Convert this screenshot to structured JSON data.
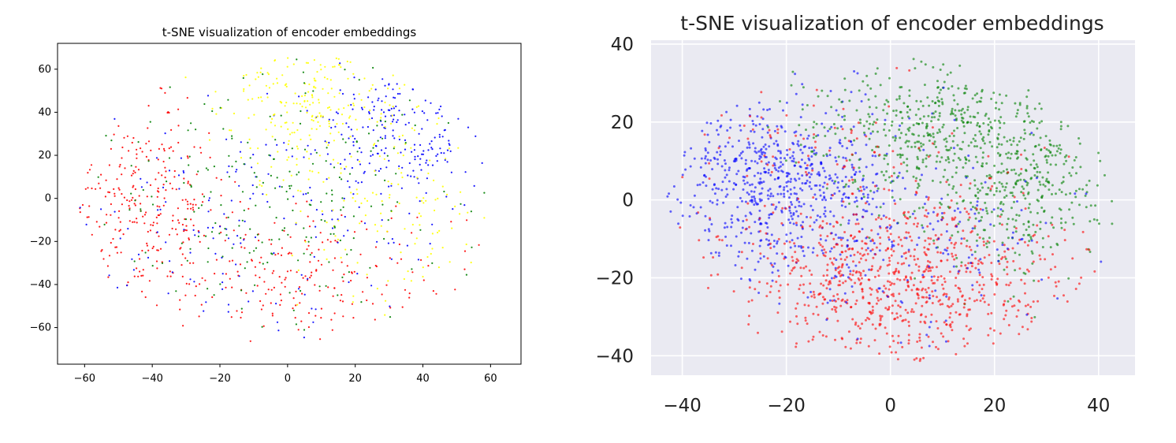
{
  "chart_data": [
    {
      "type": "scatter",
      "title": "t-SNE visualization of encoder embeddings",
      "xlabel": "",
      "ylabel": "",
      "xlim": [
        -68,
        69
      ],
      "ylim": [
        -77,
        72
      ],
      "xticks": [
        -60,
        -40,
        -20,
        0,
        20,
        40,
        60
      ],
      "yticks": [
        60,
        40,
        20,
        0,
        -20,
        -40,
        -60
      ],
      "xtick_labels": [
        "−60",
        "−40",
        "−20",
        "0",
        "20",
        "40",
        "60"
      ],
      "ytick_labels": [
        "60",
        "40",
        "20",
        "0",
        "−20",
        "−40",
        "−60"
      ],
      "grid": false,
      "style": "white",
      "series": [
        {
          "color": "#ff0000",
          "center": [
            -42,
            -5
          ],
          "spread": [
            12,
            22
          ],
          "n": 260
        },
        {
          "color": "#ff0000",
          "center": [
            5,
            -35
          ],
          "spread": [
            22,
            15
          ],
          "n": 200
        },
        {
          "color": "#0000ff",
          "center": [
            35,
            32
          ],
          "spread": [
            14,
            18
          ],
          "n": 200
        },
        {
          "color": "#0000ff",
          "center": [
            -10,
            -10
          ],
          "spread": [
            25,
            30
          ],
          "n": 160
        },
        {
          "color": "#ffff00",
          "center": [
            8,
            42
          ],
          "spread": [
            14,
            16
          ],
          "n": 220
        },
        {
          "color": "#ffff00",
          "center": [
            28,
            0
          ],
          "spread": [
            18,
            25
          ],
          "n": 120
        },
        {
          "color": "#008000",
          "center": [
            0,
            0
          ],
          "spread": [
            28,
            30
          ],
          "n": 230
        }
      ]
    },
    {
      "type": "scatter",
      "title": "t-SNE visualization of encoder embeddings",
      "xlabel": "",
      "ylabel": "",
      "xlim": [
        -46,
        47
      ],
      "ylim": [
        -45,
        41
      ],
      "xticks": [
        -40,
        -20,
        0,
        20,
        40
      ],
      "yticks": [
        40,
        20,
        0,
        -20,
        -40
      ],
      "xtick_labels": [
        "−40",
        "−20",
        "0",
        "20",
        "40"
      ],
      "ytick_labels": [
        "40",
        "20",
        "0",
        "−20",
        "−40"
      ],
      "grid": true,
      "style": "darkgrid",
      "series": [
        {
          "color": "#0000ff",
          "center": [
            -22,
            5
          ],
          "spread": [
            11,
            11
          ],
          "n": 650
        },
        {
          "color": "#008000",
          "center": [
            5,
            18
          ],
          "spread": [
            11,
            9
          ],
          "n": 380
        },
        {
          "color": "#008000",
          "center": [
            24,
            4
          ],
          "spread": [
            9,
            11
          ],
          "n": 420
        },
        {
          "color": "#ff0000",
          "center": [
            2,
            -20
          ],
          "spread": [
            15,
            11
          ],
          "n": 780
        },
        {
          "color": "#ff0000",
          "center": [
            -15,
            5
          ],
          "spread": [
            18,
            15
          ],
          "n": 130
        },
        {
          "color": "#0000ff",
          "center": [
            5,
            -10
          ],
          "spread": [
            15,
            12
          ],
          "n": 170
        }
      ]
    }
  ]
}
